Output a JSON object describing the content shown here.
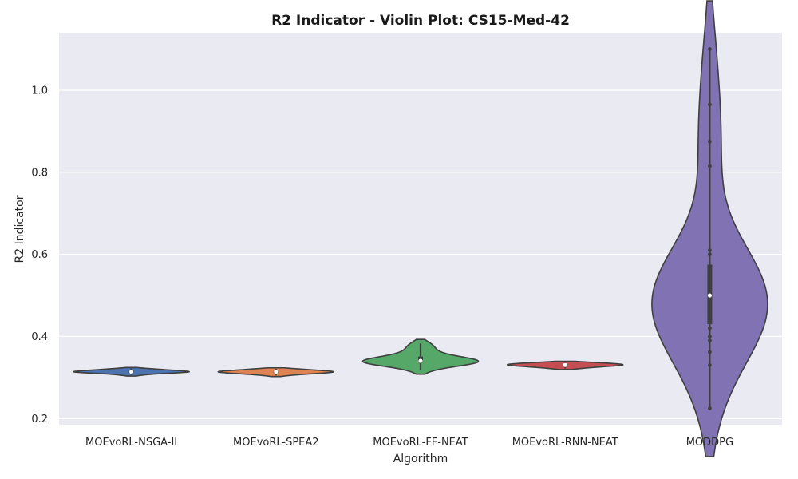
{
  "chart_data": {
    "type": "violin",
    "title": "R2 Indicator - Violin Plot: CS15-Med-42",
    "xlabel": "Algorithm",
    "ylabel": "R2 Indicator",
    "ylim": [
      0.185,
      1.14
    ],
    "yticks": [
      0.2,
      0.4,
      0.6,
      0.8,
      1.0
    ],
    "ytick_labels": [
      "0.2",
      "0.4",
      "0.6",
      "0.8",
      "1.0"
    ],
    "grid": true,
    "background": "#eaeaf2",
    "grid_color": "#ffffff",
    "categories": [
      "MOEvoRL-NSGA-II",
      "MOEvoRL-SPEA2",
      "MOEvoRL-FF-NEAT",
      "MOEvoRL-RNN-NEAT",
      "MODDPG"
    ],
    "colors": [
      "#4c72b0",
      "#dd8452",
      "#55a868",
      "#c44e52",
      "#8172b3"
    ],
    "series": [
      {
        "name": "MOEvoRL-NSGA-II",
        "points": [
          0.306,
          0.309,
          0.31,
          0.312,
          0.312,
          0.313,
          0.313,
          0.314,
          0.314,
          0.315,
          0.315,
          0.316,
          0.317,
          0.318,
          0.319,
          0.32,
          0.322
        ]
      },
      {
        "name": "MOEvoRL-SPEA2",
        "points": [
          0.305,
          0.308,
          0.309,
          0.31,
          0.311,
          0.312,
          0.313,
          0.313,
          0.314,
          0.314,
          0.315,
          0.316,
          0.316,
          0.317,
          0.319,
          0.32,
          0.321
        ]
      },
      {
        "name": "MOEvoRL-FF-NEAT",
        "points": [
          0.318,
          0.328,
          0.332,
          0.334,
          0.336,
          0.337,
          0.338,
          0.339,
          0.34,
          0.341,
          0.343,
          0.345,
          0.348,
          0.352,
          0.358,
          0.366,
          0.375,
          0.383
        ]
      },
      {
        "name": "MOEvoRL-RNN-NEAT",
        "points": [
          0.322,
          0.324,
          0.326,
          0.327,
          0.328,
          0.329,
          0.33,
          0.33,
          0.331,
          0.332,
          0.332,
          0.333,
          0.334,
          0.335,
          0.336,
          0.337
        ]
      },
      {
        "name": "MODDPG",
        "points": [
          0.225,
          0.33,
          0.362,
          0.39,
          0.4,
          0.42,
          0.44,
          0.46,
          0.47,
          0.48,
          0.49,
          0.5,
          0.51,
          0.52,
          0.53,
          0.54,
          0.55,
          0.6,
          0.61,
          0.815,
          0.875,
          0.965,
          1.1
        ]
      }
    ]
  }
}
